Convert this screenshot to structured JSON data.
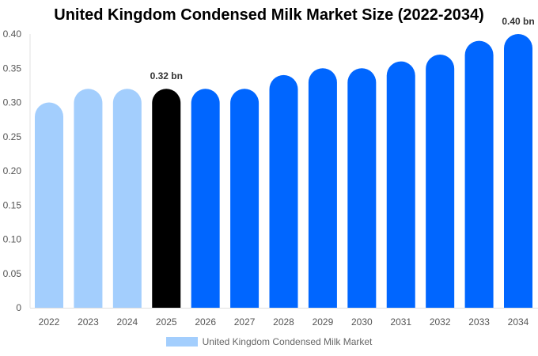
{
  "chart_data": {
    "type": "bar",
    "title": "United Kingdom Condensed Milk Market Size (2022-2034)",
    "categories": [
      "2022",
      "2023",
      "2024",
      "2025",
      "2026",
      "2027",
      "2028",
      "2029",
      "2030",
      "2031",
      "2032",
      "2033",
      "2034"
    ],
    "series": [
      {
        "name": "United Kingdom Condensed Milk Market",
        "values": [
          0.3,
          0.32,
          0.32,
          0.32,
          0.32,
          0.32,
          0.34,
          0.35,
          0.35,
          0.36,
          0.37,
          0.39,
          0.4
        ]
      }
    ],
    "bar_colors": [
      "#a3cefd",
      "#a3cefd",
      "#a3cefd",
      "#000000",
      "#0066ff",
      "#0066ff",
      "#0066ff",
      "#0066ff",
      "#0066ff",
      "#0066ff",
      "#0066ff",
      "#0066ff",
      "#0066ff"
    ],
    "data_labels": [
      {
        "category": "2025",
        "text": "0.32 bn"
      },
      {
        "category": "2034",
        "text": "0.40 bn"
      }
    ],
    "y_ticks": [
      "0",
      "0.05",
      "0.10",
      "0.15",
      "0.20",
      "0.25",
      "0.30",
      "0.35",
      "0.40"
    ],
    "ylim": [
      0,
      0.4
    ],
    "xlabel": "",
    "ylabel": "",
    "grid": false,
    "legend_position": "bottom",
    "legend_color": "#a3cefd"
  }
}
